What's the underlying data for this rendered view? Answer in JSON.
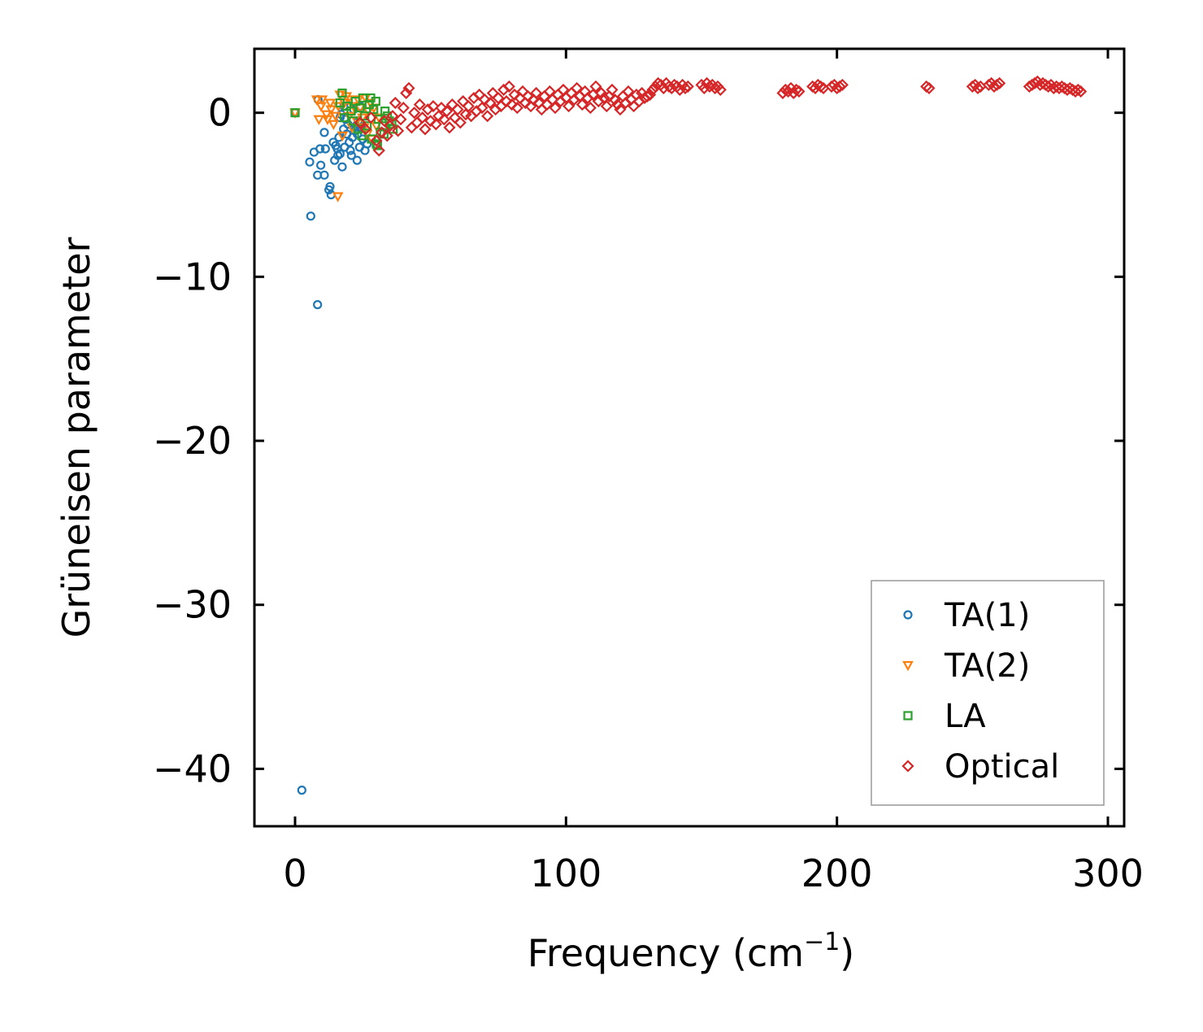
{
  "chart_data": {
    "type": "scatter",
    "title": "",
    "xlabel": "Frequency (cm",
    "xlabel_superscript": "−1",
    "xlabel_suffix": ")",
    "ylabel": "Grüneisen parameter",
    "xlim": [
      -15,
      306
    ],
    "ylim": [
      -43.5,
      3.9
    ],
    "xticks": [
      0,
      100,
      200,
      300
    ],
    "xtick_labels": [
      "0",
      "100",
      "200",
      "300"
    ],
    "yticks": [
      0,
      -10,
      -20,
      -30,
      -40
    ],
    "ytick_labels": [
      "0",
      "−10",
      "−20",
      "−30",
      "−40"
    ],
    "grid": false,
    "legend_position": "lower-right",
    "series": [
      {
        "name": "TA(1)",
        "color": "#1f77b4",
        "marker": "circle",
        "points": [
          [
            0,
            0
          ],
          [
            2.5,
            -41.3
          ],
          [
            8.3,
            -11.7
          ],
          [
            5.8,
            -6.3
          ],
          [
            13.3,
            -5.0
          ],
          [
            12.5,
            -4.7
          ],
          [
            12.9,
            -4.5
          ],
          [
            8.3,
            -3.8
          ],
          [
            10.8,
            -3.8
          ],
          [
            9.5,
            -3.2
          ],
          [
            5.4,
            -3.0
          ],
          [
            15.8,
            -2.6
          ],
          [
            7.0,
            -2.4
          ],
          [
            9.2,
            -2.2
          ],
          [
            11.2,
            -2.2
          ],
          [
            17.4,
            -3.3
          ],
          [
            14.6,
            -2.9
          ],
          [
            16.6,
            -2.5
          ],
          [
            18.3,
            -2.1
          ],
          [
            20.0,
            -1.8
          ],
          [
            21.2,
            -1.5
          ],
          [
            14.1,
            -1.8
          ],
          [
            15.0,
            -2.0
          ],
          [
            19.1,
            -1.3
          ],
          [
            22.0,
            -1.1
          ],
          [
            22.5,
            -0.8
          ],
          [
            23.3,
            -0.5
          ],
          [
            18.7,
            -0.4
          ],
          [
            17.0,
            -0.1
          ],
          [
            21.6,
            0.2
          ],
          [
            24.1,
            0.4
          ],
          [
            10.8,
            -1.2
          ],
          [
            25.0,
            -1.6
          ],
          [
            25.8,
            -2.3
          ],
          [
            26.6,
            -1.9
          ],
          [
            23.8,
            -2.1
          ],
          [
            20.4,
            -2.3
          ],
          [
            16.2,
            -1.5
          ],
          [
            17.9,
            -1.0
          ],
          [
            19.5,
            -0.7
          ],
          [
            23.0,
            -1.3
          ],
          [
            24.5,
            -0.9
          ],
          [
            18.0,
            0.4
          ],
          [
            16.6,
            -0.3
          ],
          [
            8.5,
            0.8
          ],
          [
            20.8,
            -2.6
          ],
          [
            22.9,
            -2.9
          ],
          [
            15.6,
            -2.2
          ]
        ]
      },
      {
        "name": "TA(2)",
        "color": "#ff7f0e",
        "marker": "triangle-down",
        "points": [
          [
            0,
            0
          ],
          [
            15.8,
            -5.1
          ],
          [
            8.0,
            0.8
          ],
          [
            8.8,
            -0.4
          ],
          [
            10.0,
            0.8
          ],
          [
            12.0,
            -0.4
          ],
          [
            16.6,
            1.1
          ],
          [
            18.2,
            0.6
          ],
          [
            19.6,
            0.8
          ],
          [
            13.3,
            0.2
          ],
          [
            15.0,
            -0.2
          ],
          [
            21.6,
            0.4
          ],
          [
            24.0,
            0.3
          ],
          [
            26.0,
            0.9
          ],
          [
            27.8,
            0.6
          ],
          [
            29.1,
            0.3
          ],
          [
            22.8,
            -0.5
          ],
          [
            25.4,
            -0.9
          ],
          [
            26.6,
            -1.3
          ],
          [
            28.3,
            -1.6
          ],
          [
            30.0,
            -0.8
          ],
          [
            20.0,
            -0.2
          ],
          [
            17.5,
            -1.4
          ],
          [
            16.0,
            0.4
          ],
          [
            14.2,
            -0.7
          ],
          [
            11.6,
            -0.1
          ],
          [
            9.6,
            0.4
          ],
          [
            23.3,
            0.8
          ],
          [
            27.0,
            0.1
          ],
          [
            31.0,
            -0.3
          ],
          [
            19.0,
            1.0
          ],
          [
            13.0,
            0.6
          ],
          [
            24.9,
            -0.3
          ],
          [
            21.0,
            -0.9
          ]
        ]
      },
      {
        "name": "LA",
        "color": "#2ca02c",
        "marker": "square",
        "points": [
          [
            0,
            0
          ],
          [
            16.6,
            0.6
          ],
          [
            17.4,
            1.2
          ],
          [
            19.0,
            0.4
          ],
          [
            20.7,
            0.1
          ],
          [
            22.3,
            0.7
          ],
          [
            24.0,
            0.3
          ],
          [
            25.7,
            -0.2
          ],
          [
            27.4,
            0.5
          ],
          [
            29.0,
            0.2
          ],
          [
            30.7,
            -0.4
          ],
          [
            32.4,
            -0.8
          ],
          [
            34.1,
            -0.2
          ],
          [
            35.7,
            -0.7
          ],
          [
            31.5,
            -1.2
          ],
          [
            28.2,
            -1.6
          ],
          [
            30.0,
            -1.9
          ],
          [
            26.6,
            -0.8
          ],
          [
            23.2,
            -1.0
          ],
          [
            21.5,
            -0.5
          ],
          [
            33.2,
            0.1
          ],
          [
            36.2,
            -1.0
          ],
          [
            29.8,
            0.7
          ],
          [
            27.9,
            0.9
          ],
          [
            25.0,
            0.9
          ],
          [
            18.2,
            -0.3
          ],
          [
            32.8,
            -1.3
          ],
          [
            34.8,
            -0.5
          ],
          [
            30.4,
            -2.0
          ],
          [
            24.6,
            -1.4
          ]
        ]
      },
      {
        "name": "Optical",
        "color": "#d62728",
        "marker": "diamond",
        "points": [
          [
            24,
            -0.6
          ],
          [
            26,
            -1.0
          ],
          [
            28,
            -0.3
          ],
          [
            30,
            -1.7
          ],
          [
            31,
            -2.3
          ],
          [
            32,
            -1.2
          ],
          [
            33,
            -0.5
          ],
          [
            34,
            -1.4
          ],
          [
            35,
            -0.8
          ],
          [
            36,
            -0.2
          ],
          [
            37,
            0.6
          ],
          [
            38,
            -1.1
          ],
          [
            39,
            -0.4
          ],
          [
            40,
            0.3
          ],
          [
            41,
            1.2
          ],
          [
            42,
            1.5
          ],
          [
            43,
            -0.9
          ],
          [
            44,
            0.0
          ],
          [
            45,
            -0.6
          ],
          [
            46,
            0.5
          ],
          [
            47,
            -0.3
          ],
          [
            48,
            -1.0
          ],
          [
            49,
            0.2
          ],
          [
            50,
            -0.5
          ],
          [
            51,
            0.4
          ],
          [
            52,
            -0.7
          ],
          [
            53,
            -0.2
          ],
          [
            54,
            0.3
          ],
          [
            55,
            -0.4
          ],
          [
            56,
            0.1
          ],
          [
            57,
            -0.9
          ],
          [
            58,
            0.5
          ],
          [
            59,
            -0.3
          ],
          [
            60,
            0.2
          ],
          [
            61,
            -0.6
          ],
          [
            62,
            0.7
          ],
          [
            63,
            -0.1
          ],
          [
            64,
            0.4
          ],
          [
            65,
            -0.2
          ],
          [
            66,
            0.9
          ],
          [
            67,
            0.1
          ],
          [
            68,
            1.1
          ],
          [
            69,
            0.3
          ],
          [
            70,
            0.8
          ],
          [
            71,
            -0.2
          ],
          [
            72,
            0.6
          ],
          [
            73,
            1.2
          ],
          [
            74,
            0.2
          ],
          [
            75,
            0.9
          ],
          [
            76,
            0.4
          ],
          [
            77,
            1.4
          ],
          [
            78,
            0.7
          ],
          [
            79,
            1.6
          ],
          [
            80,
            0.5
          ],
          [
            81,
            1.1
          ],
          [
            82,
            0.3
          ],
          [
            83,
            0.9
          ],
          [
            84,
            1.3
          ],
          [
            85,
            0.6
          ],
          [
            86,
            1.0
          ],
          [
            87,
            0.4
          ],
          [
            88,
            0.8
          ],
          [
            89,
            1.2
          ],
          [
            90,
            0.6
          ],
          [
            91,
            0.2
          ],
          [
            92,
            1.0
          ],
          [
            93,
            0.5
          ],
          [
            94,
            1.3
          ],
          [
            95,
            0.8
          ],
          [
            96,
            0.3
          ],
          [
            97,
            1.1
          ],
          [
            98,
            0.7
          ],
          [
            99,
            1.4
          ],
          [
            100,
            0.9
          ],
          [
            101,
            0.4
          ],
          [
            102,
            1.2
          ],
          [
            103,
            0.8
          ],
          [
            104,
            1.5
          ],
          [
            105,
            1.0
          ],
          [
            106,
            0.5
          ],
          [
            107,
            1.3
          ],
          [
            108,
            0.9
          ],
          [
            109,
            0.3
          ],
          [
            110,
            1.1
          ],
          [
            111,
            1.6
          ],
          [
            112,
            0.7
          ],
          [
            113,
            1.2
          ],
          [
            114,
            0.9
          ],
          [
            115,
            0.4
          ],
          [
            116,
            1.0
          ],
          [
            117,
            1.4
          ],
          [
            118,
            0.8
          ],
          [
            119,
            0.5
          ],
          [
            120,
            0.2
          ],
          [
            121,
            1.0
          ],
          [
            122,
            0.6
          ],
          [
            123,
            1.3
          ],
          [
            124,
            0.8
          ],
          [
            125,
            0.4
          ],
          [
            126,
            1.1
          ],
          [
            127,
            0.7
          ],
          [
            128,
            1.2
          ],
          [
            129,
            0.9
          ],
          [
            130,
            1.0
          ],
          [
            131,
            1.1
          ],
          [
            132,
            1.4
          ],
          [
            133,
            1.6
          ],
          [
            134,
            1.8
          ],
          [
            135,
            1.7
          ],
          [
            136,
            1.5
          ],
          [
            137,
            1.8
          ],
          [
            138,
            1.6
          ],
          [
            139,
            1.5
          ],
          [
            140,
            1.7
          ],
          [
            141,
            1.6
          ],
          [
            142,
            1.4
          ],
          [
            143,
            1.7
          ],
          [
            144,
            1.5
          ],
          [
            145,
            1.6
          ],
          [
            150,
            1.7
          ],
          [
            151,
            1.5
          ],
          [
            152,
            1.8
          ],
          [
            153,
            1.6
          ],
          [
            154,
            1.7
          ],
          [
            155,
            1.5
          ],
          [
            156,
            1.6
          ],
          [
            157,
            1.4
          ],
          [
            180,
            1.2
          ],
          [
            181,
            1.4
          ],
          [
            182,
            1.3
          ],
          [
            183,
            1.5
          ],
          [
            184,
            1.2
          ],
          [
            185,
            1.4
          ],
          [
            186,
            1.3
          ],
          [
            191,
            1.6
          ],
          [
            192,
            1.5
          ],
          [
            193,
            1.7
          ],
          [
            194,
            1.6
          ],
          [
            195,
            1.5
          ],
          [
            198,
            1.6
          ],
          [
            199,
            1.7
          ],
          [
            200,
            1.5
          ],
          [
            201,
            1.6
          ],
          [
            202,
            1.7
          ],
          [
            233,
            1.6
          ],
          [
            234,
            1.5
          ],
          [
            250,
            1.6
          ],
          [
            251,
            1.7
          ],
          [
            252,
            1.5
          ],
          [
            253,
            1.6
          ],
          [
            256,
            1.7
          ],
          [
            257,
            1.8
          ],
          [
            258,
            1.6
          ],
          [
            259,
            1.7
          ],
          [
            260,
            1.8
          ],
          [
            271,
            1.6
          ],
          [
            272,
            1.7
          ],
          [
            273,
            1.8
          ],
          [
            274,
            1.9
          ],
          [
            275,
            1.7
          ],
          [
            276,
            1.8
          ],
          [
            277,
            1.7
          ],
          [
            278,
            1.6
          ],
          [
            279,
            1.7
          ],
          [
            280,
            1.5
          ],
          [
            281,
            1.6
          ],
          [
            282,
            1.5
          ],
          [
            283,
            1.6
          ],
          [
            284,
            1.5
          ],
          [
            285,
            1.4
          ],
          [
            286,
            1.5
          ],
          [
            287,
            1.4
          ],
          [
            288,
            1.3
          ],
          [
            289,
            1.4
          ],
          [
            290,
            1.3
          ]
        ]
      }
    ]
  }
}
